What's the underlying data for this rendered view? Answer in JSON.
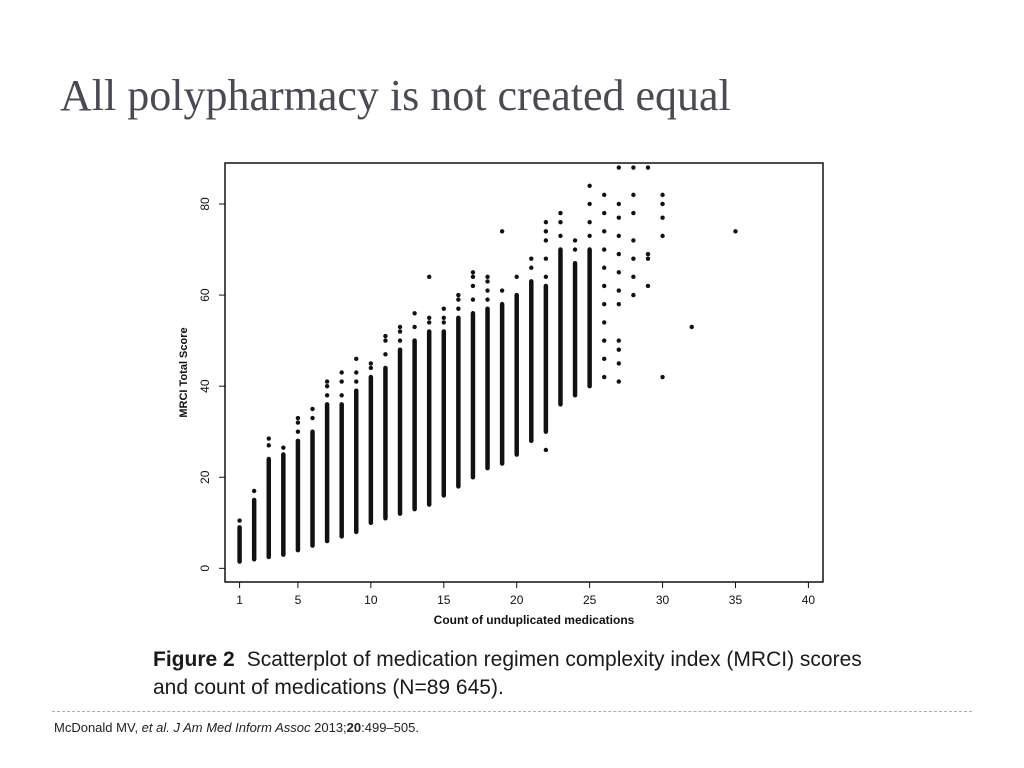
{
  "slide": {
    "title": "All polypharmacy is not created equal"
  },
  "caption": {
    "label": "Figure 2",
    "text": "Scatterplot of medication regimen complexity index (MRCI) scores and count of medications (N=89 645)."
  },
  "citation": {
    "authors": "McDonald MV, ",
    "etal": "et al.",
    "journal": "J Am Med Inform Assoc",
    "year": "2013;",
    "volume": "20",
    "pages": ":499–505."
  },
  "colors": {
    "title": "#4a4a55",
    "points": "#111111",
    "divider": "#9bb4c4"
  },
  "chart_data": {
    "type": "scatter",
    "xlabel": "Count of unduplicated medications",
    "ylabel": "MRCI Total Score",
    "xlim": [
      0,
      41
    ],
    "ylim": [
      -3,
      89
    ],
    "xticks": [
      1,
      5,
      10,
      15,
      20,
      25,
      30,
      35,
      40
    ],
    "yticks": [
      0,
      20,
      40,
      60,
      80
    ],
    "grid": false,
    "legend": "none",
    "columns": [
      {
        "x": 1,
        "min": 1.5,
        "max": 9,
        "outliers": [
          10.5
        ]
      },
      {
        "x": 2,
        "min": 2,
        "max": 15,
        "outliers": [
          17
        ]
      },
      {
        "x": 3,
        "min": 2.5,
        "max": 24,
        "outliers": [
          27,
          28.5
        ]
      },
      {
        "x": 4,
        "min": 3,
        "max": 25,
        "outliers": [
          26.5
        ]
      },
      {
        "x": 5,
        "min": 4,
        "max": 28,
        "outliers": [
          30,
          32,
          33
        ]
      },
      {
        "x": 6,
        "min": 5,
        "max": 30,
        "outliers": [
          33,
          35
        ]
      },
      {
        "x": 7,
        "min": 6,
        "max": 36,
        "outliers": [
          38,
          40,
          41
        ]
      },
      {
        "x": 8,
        "min": 7,
        "max": 36,
        "outliers": [
          38,
          41,
          43
        ]
      },
      {
        "x": 9,
        "min": 8,
        "max": 39,
        "outliers": [
          41,
          43,
          46
        ]
      },
      {
        "x": 10,
        "min": 10,
        "max": 42,
        "outliers": [
          44,
          45
        ]
      },
      {
        "x": 11,
        "min": 11,
        "max": 44,
        "outliers": [
          47,
          50,
          51
        ]
      },
      {
        "x": 12,
        "min": 12,
        "max": 48,
        "outliers": [
          50,
          52,
          53
        ]
      },
      {
        "x": 13,
        "min": 13,
        "max": 50,
        "outliers": [
          53,
          56
        ]
      },
      {
        "x": 14,
        "min": 14,
        "max": 52,
        "outliers": [
          54,
          55,
          64
        ]
      },
      {
        "x": 15,
        "min": 16,
        "max": 52,
        "outliers": [
          54,
          55,
          57
        ]
      },
      {
        "x": 16,
        "min": 18,
        "max": 55,
        "outliers": [
          57,
          59,
          60
        ]
      },
      {
        "x": 17,
        "min": 20,
        "max": 56,
        "outliers": [
          59,
          62,
          64,
          65
        ]
      },
      {
        "x": 18,
        "min": 22,
        "max": 57,
        "outliers": [
          59,
          61,
          63,
          64
        ]
      },
      {
        "x": 19,
        "min": 23,
        "max": 58,
        "outliers": [
          61,
          74
        ]
      },
      {
        "x": 20,
        "min": 25,
        "max": 60,
        "outliers": [
          64
        ]
      },
      {
        "x": 21,
        "min": 28,
        "max": 63,
        "outliers": [
          66,
          68
        ]
      },
      {
        "x": 22,
        "min": 30,
        "max": 62,
        "outliers": [
          26,
          64,
          68,
          72,
          74,
          76
        ]
      },
      {
        "x": 23,
        "min": 36,
        "max": 70,
        "outliers": [
          73,
          76,
          78
        ]
      },
      {
        "x": 24,
        "min": 38,
        "max": 67,
        "outliers": [
          70,
          72
        ]
      },
      {
        "x": 25,
        "min": 40,
        "max": 70,
        "outliers": [
          73,
          76,
          80,
          84
        ]
      }
    ],
    "points": [
      {
        "x": 26,
        "y": 42
      },
      {
        "x": 26,
        "y": 46
      },
      {
        "x": 26,
        "y": 50
      },
      {
        "x": 26,
        "y": 54
      },
      {
        "x": 26,
        "y": 58
      },
      {
        "x": 26,
        "y": 62
      },
      {
        "x": 26,
        "y": 66
      },
      {
        "x": 26,
        "y": 70
      },
      {
        "x": 26,
        "y": 74
      },
      {
        "x": 26,
        "y": 78
      },
      {
        "x": 26,
        "y": 82
      },
      {
        "x": 27,
        "y": 41
      },
      {
        "x": 27,
        "y": 45
      },
      {
        "x": 27,
        "y": 48
      },
      {
        "x": 27,
        "y": 50
      },
      {
        "x": 27,
        "y": 58
      },
      {
        "x": 27,
        "y": 61
      },
      {
        "x": 27,
        "y": 65
      },
      {
        "x": 27,
        "y": 69
      },
      {
        "x": 27,
        "y": 73
      },
      {
        "x": 27,
        "y": 77
      },
      {
        "x": 27,
        "y": 80
      },
      {
        "x": 27,
        "y": 88
      },
      {
        "x": 28,
        "y": 60
      },
      {
        "x": 28,
        "y": 64
      },
      {
        "x": 28,
        "y": 68
      },
      {
        "x": 28,
        "y": 72
      },
      {
        "x": 28,
        "y": 78
      },
      {
        "x": 28,
        "y": 82
      },
      {
        "x": 28,
        "y": 88
      },
      {
        "x": 29,
        "y": 62
      },
      {
        "x": 29,
        "y": 68
      },
      {
        "x": 29,
        "y": 69
      },
      {
        "x": 29,
        "y": 88
      },
      {
        "x": 30,
        "y": 42
      },
      {
        "x": 30,
        "y": 73
      },
      {
        "x": 30,
        "y": 77
      },
      {
        "x": 30,
        "y": 80
      },
      {
        "x": 30,
        "y": 82
      },
      {
        "x": 32,
        "y": 53
      },
      {
        "x": 35,
        "y": 74
      }
    ]
  }
}
